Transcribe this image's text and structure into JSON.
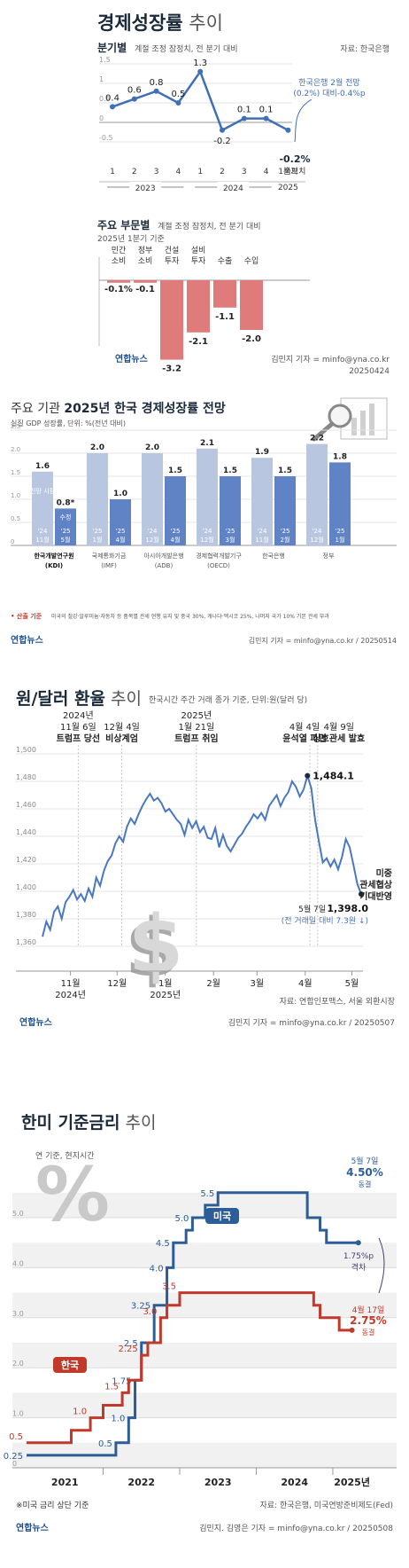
{
  "panel1": {
    "title_bold": "경제성장률",
    "title_light": " 추이",
    "section1_label": "분기별",
    "section1_note": "계절 조정 잠정치, 전 분기 대비",
    "source": "자료: 한국은행",
    "annotation_line1": "한국은행 2월 전망",
    "annotation_line2": "(0.2%) 대비-0.4%p",
    "last_value": "-0.2%",
    "last_tag": "속보치",
    "y_ticks": [
      "1.5",
      "1",
      "0.5",
      "0",
      "-0.5"
    ],
    "x_quarters": [
      "1",
      "2",
      "3",
      "4",
      "1",
      "2",
      "3",
      "4",
      "1분기"
    ],
    "x_years": [
      "2023",
      "2024",
      "2025"
    ],
    "section2_label": "주요 부문별",
    "section2_note": "계절 조정 잠정치, 전 분기 대비",
    "section2_sub": "2025년 1분기 기준",
    "credit": "김민지 기자 = minfo@yna.co.kr",
    "date": "20250424",
    "logo": "연합뉴스"
  },
  "panel2": {
    "title_light": "주요 기관 ",
    "title_bold": "2025년 한국 경제성장률 전망",
    "subtitle": "실질 GDP 성장률, 단위: %(전년 대비)",
    "first_tags": [
      "전망 시점",
      "수정"
    ],
    "note_label": "• 산출 기준",
    "note_text": "미국의 철강·알루미늄·자동차 등 품목별 관세 현행 유지 및 중국 30%, 캐나다·멕시코 25%, 나머지 국가 10% 기본 관세 부과",
    "credit": "김민지 기자 = minfo@yna.co.kr / 20250514",
    "logo": "연합뉴스",
    "y_ticks": [
      "2.5",
      "2.0",
      "1.5",
      "1.0",
      "0.5",
      "0"
    ]
  },
  "panel3": {
    "title_bold": "원/달러 환율",
    "title_light": " 추이",
    "subtitle": "한국시간 주간 거래 종가 기준, 단위:원(달러 당)",
    "events": [
      {
        "lines": [
          "2024년",
          "11월 6일",
          "트럼프 당선"
        ]
      },
      {
        "lines": [
          "12월 4일",
          "비상계엄"
        ]
      },
      {
        "lines": [
          "2025년",
          "1월 21일",
          "트럼프 취임"
        ]
      },
      {
        "lines": [
          "4월 4일",
          "윤석열 파면"
        ]
      },
      {
        "lines": [
          "4월 9일",
          "상호관세 발효"
        ]
      }
    ],
    "peak_label": "1,484.1",
    "last_label_date": "5월 7일",
    "last_label_value": "1,398.0",
    "last_label_note": "(전 거래일 대비 7.3원 ↓)",
    "right_note": [
      "미중",
      "관세협상",
      "기대반영"
    ],
    "y_ticks": [
      "1,500",
      "1,480",
      "1,460",
      "1,440",
      "1,420",
      "1,400",
      "1,380",
      "1,360"
    ],
    "x_ticks": [
      "11월",
      "12월",
      "1월",
      "2월",
      "3월",
      "4월",
      "5월"
    ],
    "x_years": [
      "2024년",
      "2025년"
    ],
    "source": "자료: 연합인포맥스, 서울 외환시장",
    "credit": "김민지 기자 = minfo@yna.co.kr / 20250507",
    "logo": "연합뉴스"
  },
  "panel4": {
    "title_bold": "한미 기준금리",
    "title_light": " 추이",
    "subtitle": "연 기준, 현지시간",
    "us_label": "미국",
    "kr_label": "한국",
    "us_last_date": "5월 7일",
    "us_last_value": "4.50%",
    "us_last_tag": "동결",
    "kr_last_date": "4월 17일",
    "kr_last_value": "2.75%",
    "kr_last_tag": "동결",
    "gap_value": "1.75%p",
    "gap_label": "격차",
    "y_ticks": [
      "5.0",
      "4.0",
      "3.0",
      "2.0",
      "1.0",
      "0"
    ],
    "x_years": [
      "2021",
      "2022",
      "2023",
      "2024",
      "2025년"
    ],
    "footnote": "※미국 금리 상단 기준",
    "source": "자료: 한국은행, 미국연방준비제도(Fed)",
    "credit": "김민지. 김영은 기자 = minfo@yna.co.kr / 20250508",
    "logo": "연합뉴스",
    "us_step_labels": [
      "0.25",
      "0.5",
      "1.0",
      "1.75",
      "2.5",
      "3.25",
      "4.0",
      "4.5",
      "5.0",
      "5.5"
    ],
    "kr_step_labels": [
      "0.5",
      "1.0",
      "1.5",
      "2.25",
      "3.0",
      "3.5"
    ],
    "percent_glyph": "%"
  },
  "chart_data": [
    {
      "type": "line",
      "title": "경제성장률 추이 (분기별)",
      "x": [
        "2023 Q1",
        "2023 Q2",
        "2023 Q3",
        "2023 Q4",
        "2024 Q1",
        "2024 Q2",
        "2024 Q3",
        "2024 Q4",
        "2025 Q1"
      ],
      "values": [
        0.4,
        0.6,
        0.8,
        0.5,
        1.3,
        -0.2,
        0.1,
        0.1,
        -0.2
      ],
      "labels": [
        "0.4",
        "0.6",
        "0.8",
        "0.5",
        "1.3",
        "-0.2",
        "0.1",
        "0.1",
        "-0.2%"
      ],
      "ylim": [
        -0.5,
        1.5
      ],
      "color": "#3f6fb5"
    },
    {
      "type": "bar",
      "title": "주요 부문별 (2025년 1분기 기준)",
      "categories": [
        [
          "민간",
          "소비"
        ],
        [
          "정부",
          "소비"
        ],
        [
          "건설",
          "투자"
        ],
        [
          "설비",
          "투자"
        ],
        [
          "수출"
        ],
        [
          "수입"
        ]
      ],
      "values": [
        -0.1,
        -0.1,
        -3.2,
        -2.1,
        -1.1,
        -2.0
      ],
      "labels": [
        "-0.1%",
        "-0.1",
        "-3.2",
        "-2.1",
        "-1.1",
        "-2.0"
      ],
      "color": "#e07b7b"
    },
    {
      "type": "bar",
      "title": "2025년 한국 경제성장률 전망",
      "categories": [
        [
          "한국개발연구원",
          "(KDI)"
        ],
        [
          "국제통화기금",
          "(IMF)"
        ],
        [
          "아시아개발은행",
          "(ADB)"
        ],
        [
          "경제협력개발기구",
          "(OECD)"
        ],
        [
          "한국은행"
        ],
        [
          "정부"
        ]
      ],
      "series": [
        {
          "values": [
            1.6,
            2.0,
            2.0,
            2.1,
            1.9,
            2.2
          ],
          "labels": [
            "1.6",
            "2.0",
            "2.0",
            "2.1",
            "1.9",
            "2.2"
          ],
          "periods": [
            [
              "'24",
              "11월"
            ],
            [
              "'25",
              "1월"
            ],
            [
              "'24",
              "12월"
            ],
            [
              "'24",
              "12월"
            ],
            [
              "'24",
              "11월"
            ],
            [
              "'24",
              "12월"
            ]
          ],
          "color": "#b8c6e0"
        },
        {
          "values": [
            0.8,
            1.0,
            1.5,
            1.5,
            1.5,
            1.8
          ],
          "labels": [
            "0.8*",
            "1.0",
            "1.5",
            "1.5",
            "1.5",
            "1.8"
          ],
          "periods": [
            [
              "'25",
              "5월"
            ],
            [
              "'25",
              "4월"
            ],
            [
              "'25",
              "4월"
            ],
            [
              "'25",
              "3월"
            ],
            [
              "'25",
              "2월"
            ],
            [
              "'25",
              "1월"
            ]
          ],
          "color": "#5f83c4"
        }
      ],
      "ylim": [
        0,
        2.5
      ]
    },
    {
      "type": "line",
      "title": "원/달러 환율 추이",
      "x_start": "2024-10-14",
      "x_end": "2025-05-07",
      "values": [
        1367,
        1378,
        1372,
        1385,
        1389,
        1380,
        1392,
        1396,
        1401,
        1394,
        1398,
        1393,
        1402,
        1396,
        1410,
        1404,
        1415,
        1422,
        1426,
        1435,
        1440,
        1436,
        1447,
        1453,
        1449,
        1456,
        1462,
        1467,
        1471,
        1466,
        1468,
        1464,
        1458,
        1460,
        1456,
        1452,
        1449,
        1441,
        1452,
        1446,
        1451,
        1443,
        1447,
        1439,
        1438,
        1446,
        1432,
        1441,
        1433,
        1429,
        1434,
        1439,
        1442,
        1447,
        1451,
        1456,
        1453,
        1457,
        1452,
        1462,
        1466,
        1470,
        1462,
        1468,
        1472,
        1480,
        1476,
        1469,
        1474,
        1484.1,
        1475,
        1452,
        1436,
        1421,
        1424,
        1418,
        1423,
        1416,
        1425,
        1438,
        1432,
        1419,
        1405.3,
        1398.0
      ],
      "ylim": [
        1360,
        1500
      ],
      "color": "#4a78c0"
    },
    {
      "type": "line",
      "title": "한미 기준금리 추이",
      "ylim": [
        0,
        5.5
      ],
      "series": [
        {
          "name": "미국",
          "color": "#2c5d96",
          "points": [
            [
              "2021-01",
              0.25
            ],
            [
              "2022-03",
              0.5
            ],
            [
              "2022-05",
              1.0
            ],
            [
              "2022-06",
              1.75
            ],
            [
              "2022-07",
              2.5
            ],
            [
              "2022-09",
              3.25
            ],
            [
              "2022-11",
              4.0
            ],
            [
              "2022-12",
              4.5
            ],
            [
              "2023-02",
              4.75
            ],
            [
              "2023-03",
              5.0
            ],
            [
              "2023-05",
              5.25
            ],
            [
              "2023-07",
              5.5
            ],
            [
              "2024-09",
              5.0
            ],
            [
              "2024-11",
              4.75
            ],
            [
              "2024-12",
              4.5
            ],
            [
              "2025-05",
              4.5
            ]
          ]
        },
        {
          "name": "한국",
          "color": "#c0392b",
          "points": [
            [
              "2021-01",
              0.5
            ],
            [
              "2021-08",
              0.75
            ],
            [
              "2021-11",
              1.0
            ],
            [
              "2022-01",
              1.25
            ],
            [
              "2022-04",
              1.5
            ],
            [
              "2022-05",
              1.75
            ],
            [
              "2022-07",
              2.25
            ],
            [
              "2022-08",
              2.5
            ],
            [
              "2022-10",
              3.0
            ],
            [
              "2022-11",
              3.25
            ],
            [
              "2023-01",
              3.5
            ],
            [
              "2024-10",
              3.25
            ],
            [
              "2024-11",
              3.0
            ],
            [
              "2025-02",
              2.75
            ],
            [
              "2025-04",
              2.75
            ]
          ]
        }
      ]
    }
  ]
}
